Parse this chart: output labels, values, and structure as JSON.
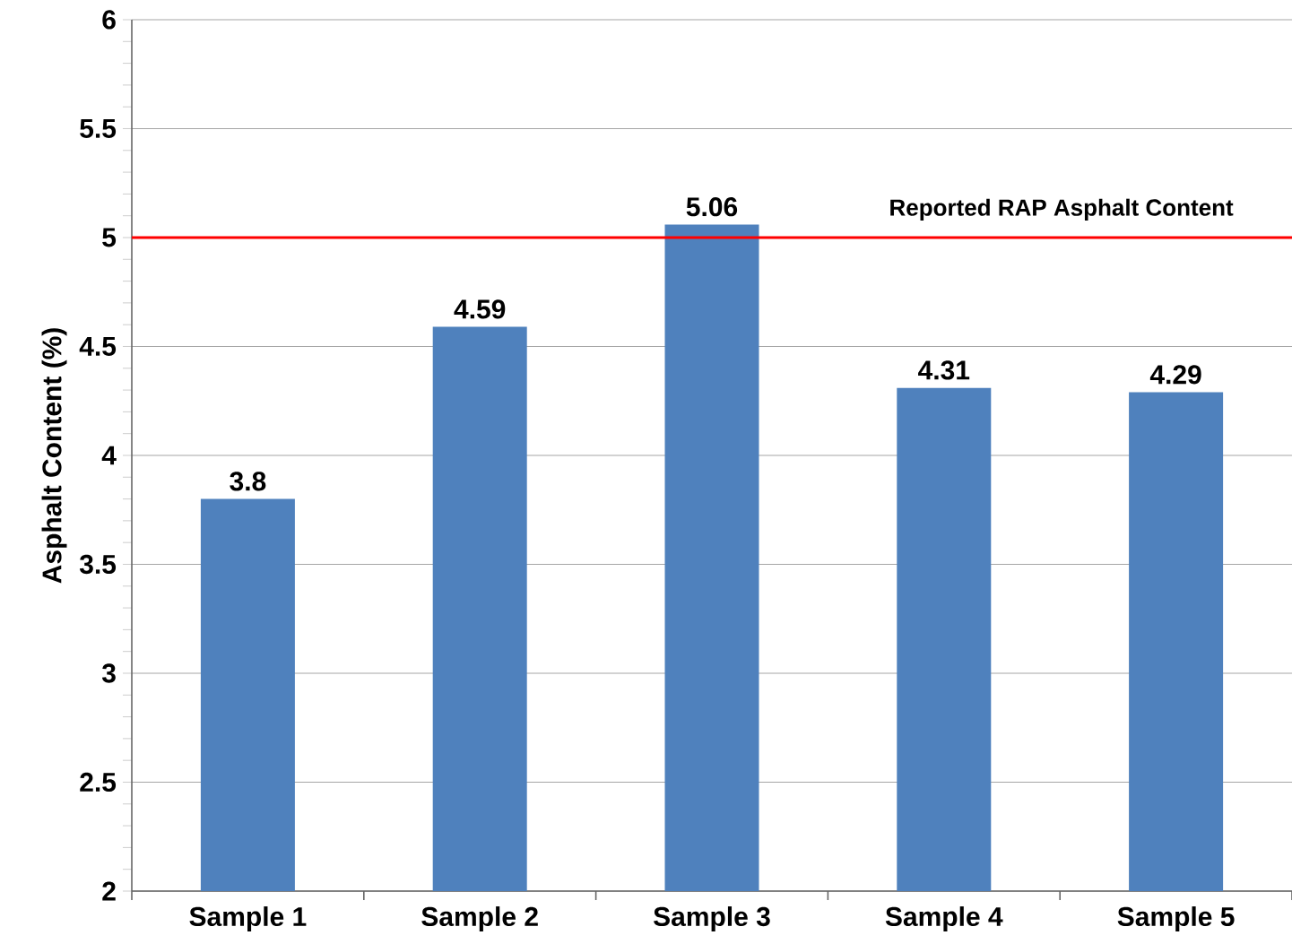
{
  "chart_data": {
    "type": "bar",
    "ylabel": "Asphalt Content (%)",
    "categories": [
      "Sample 1",
      "Sample 2",
      "Sample 3",
      "Sample 4",
      "Sample 5"
    ],
    "values": [
      3.8,
      4.59,
      5.06,
      4.31,
      4.29
    ],
    "color": "#4f81bd",
    "data_labels": true,
    "ylim": [
      2,
      6
    ],
    "yticks": [
      2,
      2.5,
      3,
      3.5,
      4,
      4.5,
      5,
      5.5,
      6
    ],
    "grid": "y",
    "ref_lines": [
      {
        "axis": "y",
        "value": 5,
        "label": "Reported RAP Asphalt Content",
        "color": "#ff0000"
      }
    ]
  }
}
